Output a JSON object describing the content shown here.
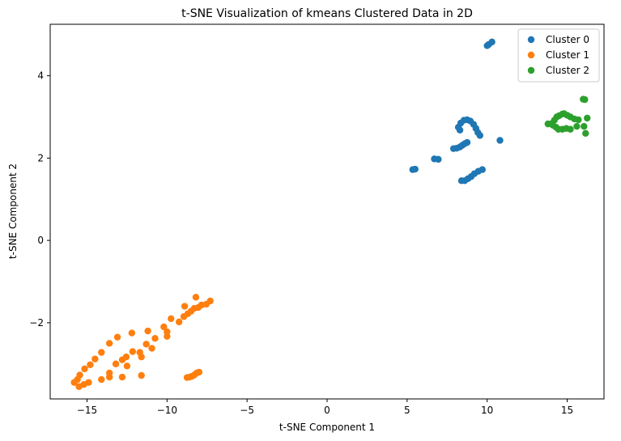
{
  "chart_data": {
    "type": "scatter",
    "title": "t-SNE Visualization of kmeans Clustered Data in 2D",
    "xlabel": "t-SNE Component 1",
    "ylabel": "t-SNE Component 2",
    "xlim": [
      -17.3,
      17.3
    ],
    "ylim": [
      -3.85,
      5.25
    ],
    "xticks": [
      -15,
      -10,
      -5,
      0,
      5,
      10,
      15
    ],
    "yticks": [
      -2,
      0,
      2,
      4
    ],
    "xtick_labels": [
      "−15",
      "−10",
      "−5",
      "0",
      "5",
      "10",
      "15"
    ],
    "ytick_labels": [
      "−2",
      "0",
      "2",
      "4"
    ],
    "grid": false,
    "legend_position": "top-right",
    "series": [
      {
        "name": "Cluster 0",
        "color": "#1f77b4",
        "points": [
          [
            10.3,
            4.82
          ],
          [
            10.0,
            4.73
          ],
          [
            10.1,
            4.76
          ],
          [
            8.2,
            2.75
          ],
          [
            8.35,
            2.85
          ],
          [
            8.55,
            2.92
          ],
          [
            8.75,
            2.93
          ],
          [
            8.95,
            2.9
          ],
          [
            9.15,
            2.82
          ],
          [
            9.3,
            2.72
          ],
          [
            9.42,
            2.62
          ],
          [
            9.55,
            2.55
          ],
          [
            8.3,
            2.68
          ],
          [
            7.9,
            2.23
          ],
          [
            8.1,
            2.24
          ],
          [
            8.3,
            2.27
          ],
          [
            8.45,
            2.31
          ],
          [
            8.6,
            2.35
          ],
          [
            8.75,
            2.38
          ],
          [
            10.8,
            2.43
          ],
          [
            6.7,
            1.98
          ],
          [
            6.95,
            1.97
          ],
          [
            5.35,
            1.72
          ],
          [
            5.5,
            1.73
          ],
          [
            8.4,
            1.45
          ],
          [
            8.6,
            1.45
          ],
          [
            8.8,
            1.5
          ],
          [
            9.0,
            1.55
          ],
          [
            9.2,
            1.62
          ],
          [
            9.45,
            1.68
          ],
          [
            9.7,
            1.72
          ]
        ]
      },
      {
        "name": "Cluster 1",
        "color": "#ff7f0e",
        "points": [
          [
            -8.2,
            -1.38
          ],
          [
            -7.3,
            -1.47
          ],
          [
            -7.55,
            -1.55
          ],
          [
            -7.85,
            -1.57
          ],
          [
            -8.05,
            -1.63
          ],
          [
            -8.3,
            -1.65
          ],
          [
            -8.5,
            -1.72
          ],
          [
            -8.7,
            -1.78
          ],
          [
            -8.9,
            -1.6
          ],
          [
            -8.95,
            -1.85
          ],
          [
            -9.25,
            -1.98
          ],
          [
            -9.75,
            -1.9
          ],
          [
            -10.2,
            -2.1
          ],
          [
            -10.0,
            -2.22
          ],
          [
            -10.0,
            -2.33
          ],
          [
            -10.75,
            -2.38
          ],
          [
            -11.2,
            -2.2
          ],
          [
            -11.3,
            -2.52
          ],
          [
            -10.95,
            -2.62
          ],
          [
            -11.7,
            -2.72
          ],
          [
            -12.2,
            -2.25
          ],
          [
            -12.15,
            -2.7
          ],
          [
            -11.6,
            -2.83
          ],
          [
            -12.55,
            -2.83
          ],
          [
            -12.8,
            -2.9
          ],
          [
            -12.5,
            -3.05
          ],
          [
            -13.1,
            -2.35
          ],
          [
            -13.6,
            -2.5
          ],
          [
            -13.2,
            -3.0
          ],
          [
            -14.1,
            -2.72
          ],
          [
            -14.5,
            -2.88
          ],
          [
            -14.8,
            -3.02
          ],
          [
            -13.6,
            -3.22
          ],
          [
            -13.6,
            -3.32
          ],
          [
            -12.8,
            -3.32
          ],
          [
            -11.6,
            -3.28
          ],
          [
            -14.1,
            -3.38
          ],
          [
            -14.9,
            -3.45
          ],
          [
            -15.15,
            -3.12
          ],
          [
            -15.45,
            -3.27
          ],
          [
            -15.2,
            -3.5
          ],
          [
            -15.5,
            -3.55
          ],
          [
            -15.8,
            -3.45
          ],
          [
            -15.6,
            -3.38
          ],
          [
            -8.75,
            -3.33
          ],
          [
            -8.6,
            -3.32
          ],
          [
            -8.45,
            -3.3
          ],
          [
            -8.3,
            -3.27
          ],
          [
            -8.15,
            -3.22
          ],
          [
            -8.0,
            -3.2
          ]
        ]
      },
      {
        "name": "Cluster 2",
        "color": "#2ca02c",
        "points": [
          [
            16.0,
            3.43
          ],
          [
            16.1,
            3.42
          ],
          [
            13.8,
            2.83
          ],
          [
            14.05,
            2.84
          ],
          [
            14.2,
            2.92
          ],
          [
            14.35,
            3.0
          ],
          [
            14.5,
            3.03
          ],
          [
            14.7,
            3.07
          ],
          [
            14.8,
            3.08
          ],
          [
            15.0,
            3.04
          ],
          [
            15.2,
            3.0
          ],
          [
            15.45,
            2.95
          ],
          [
            15.7,
            2.93
          ],
          [
            16.25,
            2.97
          ],
          [
            16.05,
            2.77
          ],
          [
            15.6,
            2.77
          ],
          [
            15.2,
            2.7
          ],
          [
            14.95,
            2.72
          ],
          [
            14.7,
            2.7
          ],
          [
            14.45,
            2.7
          ],
          [
            14.3,
            2.75
          ],
          [
            14.1,
            2.8
          ],
          [
            16.15,
            2.6
          ]
        ]
      }
    ]
  }
}
